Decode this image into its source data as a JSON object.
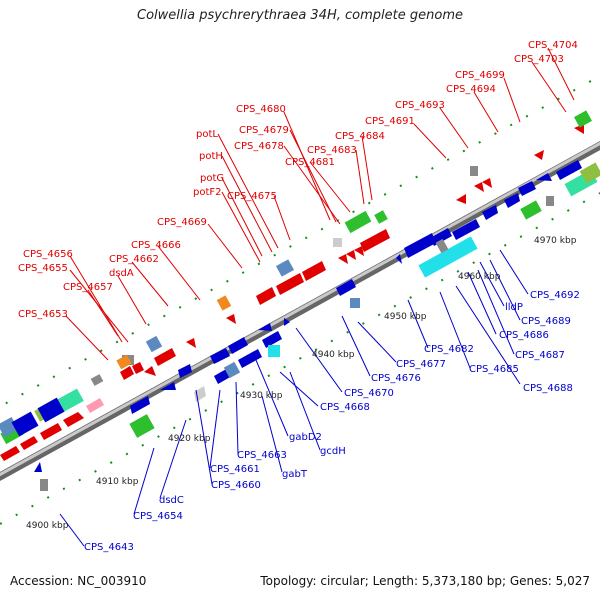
{
  "title": "Colwellia psychrerythraea 34H, complete genome",
  "footer": {
    "accession": "Accession: NC_003910",
    "summary": "Topology: circular; Length: 5,373,180 bp; Genes: 5,027"
  },
  "colors": {
    "forward": "#e00000",
    "reverse": "#0000cc",
    "rna": "#2dbf2d",
    "cyan": "#22e0ea",
    "gray": "#8a8a8a"
  },
  "scale_marks": [
    "4900 kbp",
    "4910 kbp",
    "4920 kbp",
    "4930 kbp",
    "4940 kbp",
    "4950 kbp",
    "4960 kbp",
    "4970 kbp"
  ],
  "top_labels": [
    "CPS_4704",
    "CPS_4703",
    "CPS_4699",
    "CPS_4694",
    "CPS_4693",
    "CPS_4691",
    "CPS_4680",
    "CPS_4679",
    "potL",
    "CPS_4678",
    "CPS_4684",
    "CPS_4683",
    "potH",
    "CPS_4681",
    "potG",
    "potF2",
    "CPS_4675",
    "CPS_4669",
    "CPS_4666",
    "CPS_4656",
    "CPS_4662",
    "CPS_4655",
    "dsdA",
    "CPS_4657",
    "CPS_4653"
  ],
  "bottom_labels": [
    "CPS_4692",
    "lldP",
    "CPS_4689",
    "CPS_4686",
    "CPS_4687",
    "CPS_4682",
    "CPS_4685",
    "CPS_4688",
    "CPS_4677",
    "CPS_4676",
    "CPS_4670",
    "CPS_4668",
    "gabD2",
    "gcdH",
    "CPS_4663",
    "gabT",
    "CPS_4661",
    "CPS_4660",
    "dsdC",
    "CPS_4654",
    "CPS_4643"
  ]
}
